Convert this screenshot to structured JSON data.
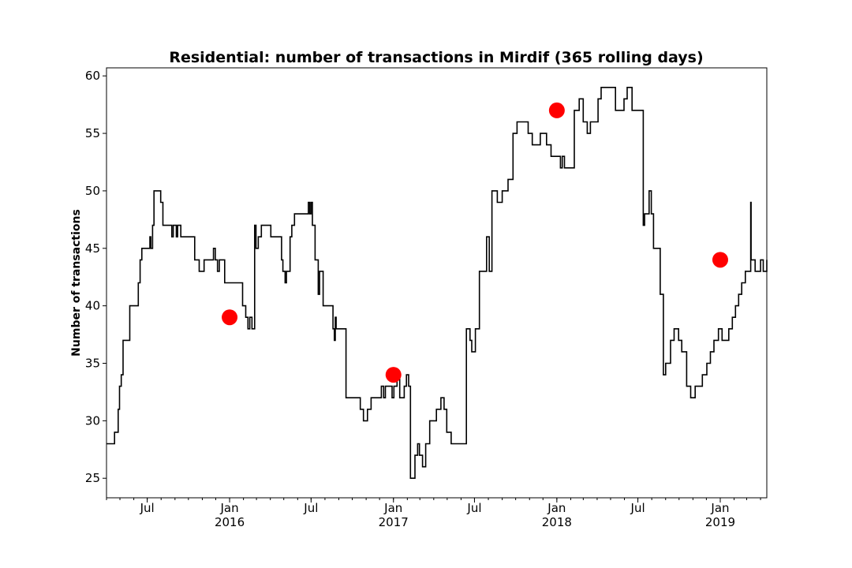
{
  "chart_data": {
    "type": "line",
    "title": "Residential: number of transactions in Mirdif (365 rolling days)",
    "xlabel": "",
    "ylabel": "Number of transactions",
    "xlim": [
      "2015-04-01",
      "2019-04-15"
    ],
    "ylim": [
      23.3,
      60.7
    ],
    "yticks": [
      25,
      30,
      35,
      40,
      45,
      50,
      55,
      60
    ],
    "xticks": [
      {
        "date": "2015-07-01",
        "label": "Jul",
        "year": ""
      },
      {
        "date": "2016-01-01",
        "label": "Jan",
        "year": "2016"
      },
      {
        "date": "2016-07-01",
        "label": "Jul",
        "year": ""
      },
      {
        "date": "2017-01-01",
        "label": "Jan",
        "year": "2017"
      },
      {
        "date": "2017-07-01",
        "label": "Jul",
        "year": ""
      },
      {
        "date": "2018-01-01",
        "label": "Jan",
        "year": "2018"
      },
      {
        "date": "2018-07-01",
        "label": "Jul",
        "year": ""
      },
      {
        "date": "2019-01-01",
        "label": "Jan",
        "year": "2019"
      }
    ],
    "grid": false,
    "series": [
      {
        "color": "#000000",
        "style": "step",
        "points": [
          [
            "2015-04-01",
            28
          ],
          [
            "2015-04-19",
            29
          ],
          [
            "2015-04-27",
            31
          ],
          [
            "2015-04-30",
            33
          ],
          [
            "2015-05-04",
            34
          ],
          [
            "2015-05-08",
            37
          ],
          [
            "2015-05-23",
            40
          ],
          [
            "2015-06-11",
            42
          ],
          [
            "2015-06-15",
            44
          ],
          [
            "2015-06-19",
            45
          ],
          [
            "2015-07-07",
            46
          ],
          [
            "2015-07-09",
            45
          ],
          [
            "2015-07-13",
            47
          ],
          [
            "2015-07-16",
            50
          ],
          [
            "2015-07-31",
            49
          ],
          [
            "2015-08-05",
            47
          ],
          [
            "2015-08-25",
            46
          ],
          [
            "2015-08-28",
            47
          ],
          [
            "2015-09-04",
            46
          ],
          [
            "2015-09-07",
            47
          ],
          [
            "2015-09-14",
            46
          ],
          [
            "2015-10-15",
            44
          ],
          [
            "2015-10-25",
            43
          ],
          [
            "2015-11-05",
            44
          ],
          [
            "2015-11-26",
            45
          ],
          [
            "2015-11-30",
            44
          ],
          [
            "2015-12-05",
            43
          ],
          [
            "2015-12-09",
            44
          ],
          [
            "2015-12-21",
            42
          ],
          [
            "2016-01-30",
            40
          ],
          [
            "2016-02-06",
            39
          ],
          [
            "2016-02-11",
            38
          ],
          [
            "2016-02-15",
            39
          ],
          [
            "2016-02-20",
            38
          ],
          [
            "2016-02-26",
            47
          ],
          [
            "2016-02-29",
            45
          ],
          [
            "2016-03-05",
            46
          ],
          [
            "2016-03-12",
            47
          ],
          [
            "2016-04-02",
            46
          ],
          [
            "2016-04-26",
            44
          ],
          [
            "2016-04-29",
            43
          ],
          [
            "2016-05-04",
            42
          ],
          [
            "2016-05-07",
            43
          ],
          [
            "2016-05-15",
            46
          ],
          [
            "2016-05-19",
            47
          ],
          [
            "2016-05-25",
            48
          ],
          [
            "2016-06-25",
            49
          ],
          [
            "2016-06-28",
            48
          ],
          [
            "2016-07-01",
            49
          ],
          [
            "2016-07-04",
            47
          ],
          [
            "2016-07-10",
            44
          ],
          [
            "2016-07-17",
            41
          ],
          [
            "2016-07-20",
            43
          ],
          [
            "2016-07-28",
            40
          ],
          [
            "2016-08-19",
            38
          ],
          [
            "2016-08-22",
            37
          ],
          [
            "2016-08-24",
            39
          ],
          [
            "2016-08-26",
            38
          ],
          [
            "2016-09-17",
            32
          ],
          [
            "2016-10-19",
            31
          ],
          [
            "2016-10-26",
            30
          ],
          [
            "2016-11-04",
            31
          ],
          [
            "2016-11-12",
            32
          ],
          [
            "2016-12-05",
            33
          ],
          [
            "2016-12-10",
            32
          ],
          [
            "2016-12-14",
            33
          ],
          [
            "2016-12-29",
            32
          ],
          [
            "2017-01-02",
            33
          ],
          [
            "2017-01-09",
            34
          ],
          [
            "2017-01-15",
            32
          ],
          [
            "2017-01-25",
            33
          ],
          [
            "2017-01-30",
            34
          ],
          [
            "2017-02-04",
            33
          ],
          [
            "2017-02-08",
            25
          ],
          [
            "2017-02-18",
            27
          ],
          [
            "2017-02-24",
            28
          ],
          [
            "2017-02-28",
            27
          ],
          [
            "2017-03-07",
            26
          ],
          [
            "2017-03-14",
            28
          ],
          [
            "2017-03-23",
            30
          ],
          [
            "2017-04-07",
            31
          ],
          [
            "2017-04-17",
            32
          ],
          [
            "2017-04-24",
            31
          ],
          [
            "2017-04-30",
            29
          ],
          [
            "2017-05-10",
            28
          ],
          [
            "2017-05-25",
            28
          ],
          [
            "2017-06-07",
            28
          ],
          [
            "2017-06-13",
            38
          ],
          [
            "2017-06-21",
            37
          ],
          [
            "2017-06-25",
            36
          ],
          [
            "2017-07-03",
            38
          ],
          [
            "2017-07-12",
            43
          ],
          [
            "2017-07-28",
            46
          ],
          [
            "2017-08-03",
            43
          ],
          [
            "2017-08-09",
            50
          ],
          [
            "2017-08-21",
            49
          ],
          [
            "2017-09-01",
            50
          ],
          [
            "2017-09-14",
            51
          ],
          [
            "2017-09-25",
            55
          ],
          [
            "2017-10-04",
            56
          ],
          [
            "2017-10-29",
            55
          ],
          [
            "2017-11-07",
            54
          ],
          [
            "2017-11-25",
            55
          ],
          [
            "2017-12-09",
            54
          ],
          [
            "2017-12-19",
            53
          ],
          [
            "2018-01-01",
            53
          ],
          [
            "2018-01-09",
            52
          ],
          [
            "2018-01-13",
            53
          ],
          [
            "2018-01-18",
            52
          ],
          [
            "2018-02-09",
            57
          ],
          [
            "2018-02-20",
            58
          ],
          [
            "2018-03-01",
            56
          ],
          [
            "2018-03-10",
            55
          ],
          [
            "2018-03-17",
            56
          ],
          [
            "2018-04-03",
            58
          ],
          [
            "2018-04-10",
            59
          ],
          [
            "2018-05-12",
            57
          ],
          [
            "2018-05-31",
            58
          ],
          [
            "2018-06-07",
            59
          ],
          [
            "2018-06-18",
            57
          ],
          [
            "2018-07-13",
            47
          ],
          [
            "2018-07-16",
            48
          ],
          [
            "2018-07-26",
            50
          ],
          [
            "2018-07-31",
            48
          ],
          [
            "2018-08-05",
            45
          ],
          [
            "2018-08-20",
            41
          ],
          [
            "2018-08-27",
            34
          ],
          [
            "2018-09-01",
            35
          ],
          [
            "2018-09-12",
            37
          ],
          [
            "2018-09-20",
            38
          ],
          [
            "2018-09-30",
            37
          ],
          [
            "2018-10-07",
            36
          ],
          [
            "2018-10-18",
            33
          ],
          [
            "2018-10-27",
            32
          ],
          [
            "2018-11-06",
            33
          ],
          [
            "2018-11-22",
            34
          ],
          [
            "2018-12-02",
            35
          ],
          [
            "2018-12-10",
            36
          ],
          [
            "2018-12-18",
            37
          ],
          [
            "2018-12-28",
            38
          ],
          [
            "2019-01-05",
            37
          ],
          [
            "2019-01-20",
            38
          ],
          [
            "2019-01-28",
            39
          ],
          [
            "2019-02-04",
            40
          ],
          [
            "2019-02-11",
            41
          ],
          [
            "2019-02-18",
            42
          ],
          [
            "2019-02-26",
            43
          ],
          [
            "2019-03-10",
            49
          ],
          [
            "2019-03-11",
            44
          ],
          [
            "2019-03-20",
            43
          ],
          [
            "2019-04-01",
            44
          ],
          [
            "2019-04-07",
            43
          ],
          [
            "2019-04-15",
            44
          ]
        ]
      }
    ],
    "markers": {
      "color": "#ff0000",
      "points": [
        [
          "2016-01-01",
          39
        ],
        [
          "2017-01-01",
          34
        ],
        [
          "2018-01-01",
          57
        ],
        [
          "2019-01-01",
          44
        ]
      ]
    }
  }
}
